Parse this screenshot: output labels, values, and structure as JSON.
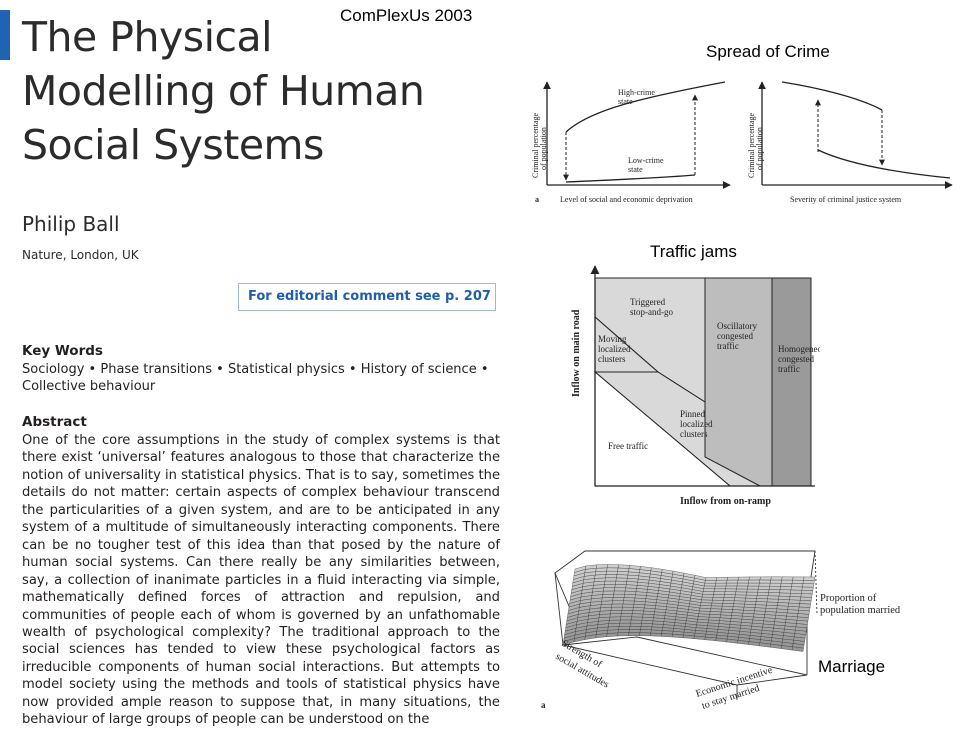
{
  "header": {
    "conference": "ComPlexUs 2003"
  },
  "paper": {
    "title_line1": "The Physical",
    "title_line2": "Modelling of Human",
    "title_line3": "Social Systems",
    "author": "Philip Ball",
    "affiliation": "Nature, London, UK",
    "editorial_note": "For editorial comment see p. 207",
    "keywords_heading": "Key Words",
    "keywords_text": "Sociology • Phase transitions • Statistical physics • History of science • Collective behaviour",
    "abstract_heading": "Abstract",
    "abstract_text": "One of the core assumptions in the study of complex systems is that there exist ‘universal’ features analogous to those that characterize the notion of universality in statistical physics. That is to say, sometimes the details do not matter: certain aspects of complex behaviour transcend the particularities of a given system, and are to be anticipated in any system of a multitude of simultaneously interacting components. There can be no tougher test of this idea than that posed by the nature of human social systems. Can there really be any similarities between, say, a collection of inanimate particles in a fluid interacting via simple, mathematically defined forces of attraction and repulsion, and communities of people each of whom is governed by an unfathomable wealth of psychological complexity? The traditional approach to the social sciences has tended to view these psychological factors as irreducible components of human social interactions. But attempts to model society using the methods and tools of statistical physics have now provided ample reason to suppose that, in many situations, the behaviour of large groups of people can be understood on the"
  },
  "figures": {
    "crime": {
      "caption": "Spread of Crime",
      "panel_label": "a",
      "left": {
        "ylabel_line1": "Criminal percentage",
        "ylabel_line2": "of population",
        "xlabel": "Level of social and economic deprivation",
        "high_label_line1": "High-crime",
        "high_label_line2": "state",
        "low_label_line1": "Low-crime",
        "low_label_line2": "state"
      },
      "right": {
        "ylabel_line1": "Criminal percentage",
        "ylabel_line2": "of population",
        "xlabel": "Severity of criminal justice system"
      }
    },
    "traffic": {
      "caption": "Traffic jams",
      "ylabel": "Inflow on main road",
      "xlabel": "Inflow from on-ramp",
      "regions": {
        "triggered_1": "Triggered",
        "triggered_2": "stop-and-go",
        "moving_1": "Moving",
        "moving_2": "localized",
        "moving_3": "clusters",
        "oscillatory_1": "Oscillatory",
        "oscillatory_2": "congested",
        "oscillatory_3": "traffic",
        "homogeneous_1": "Homogeneous",
        "homogeneous_2": "congested",
        "homogeneous_3": "traffic",
        "pinned_1": "Pinned",
        "pinned_2": "localized",
        "pinned_3": "clusters",
        "free": "Free traffic"
      },
      "colors": {
        "light": "#d9d9d9",
        "mid": "#bdbdbd",
        "dark": "#9a9a9a",
        "free": "#ffffff"
      }
    },
    "marriage": {
      "caption": "Marriage",
      "panel_label": "a",
      "z_label_line1": "Proportion of",
      "z_label_line2": "population married",
      "axis1_line1": "Strength of",
      "axis1_line2": "social attitudes",
      "axis2_line1": "Economic incentive",
      "axis2_line2": "to stay married"
    }
  }
}
